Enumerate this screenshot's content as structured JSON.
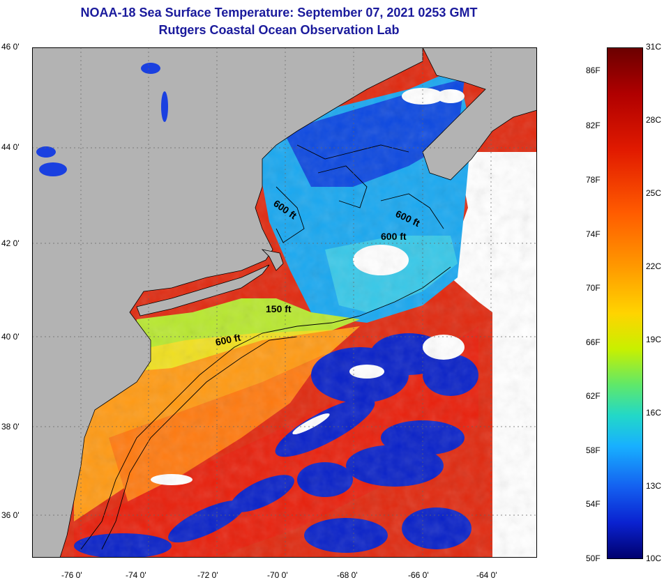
{
  "title": {
    "line1": "NOAA-18 Sea Surface Temperature:  September 07, 2021 0253 GMT",
    "line2": "Rutgers Coastal Ocean Observation Lab"
  },
  "latitude_labels": [
    "46 0'",
    "44 0'",
    "42 0'",
    "40 0'",
    "38 0'",
    "36 0'"
  ],
  "longitude_labels": [
    "-76 0'",
    "-74 0'",
    "-72 0'",
    "-70 0'",
    "-68 0'",
    "-66 0'",
    "-64 0'"
  ],
  "contour_labels": [
    "600 ft",
    "600 ft",
    "600 ft",
    "150 ft",
    "600 ft"
  ],
  "colorbar": {
    "fahrenheit": [
      "86F",
      "82F",
      "78F",
      "74F",
      "70F",
      "66F",
      "62F",
      "58F",
      "54F",
      "50F"
    ],
    "celsius": [
      "31C",
      "28C",
      "25C",
      "22C",
      "19C",
      "16C",
      "13C",
      "10C"
    ],
    "min_f": 50,
    "max_f": 88,
    "min_c": 10,
    "max_c": 31
  },
  "colors": {
    "land": "#b3b3b3",
    "no_data": "#ffffff",
    "title": "#1a1a9c",
    "warm": "#e8240c",
    "cold": "#0a22c8"
  }
}
